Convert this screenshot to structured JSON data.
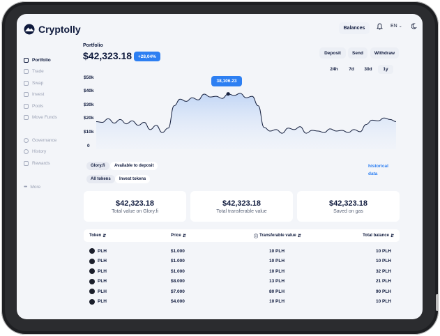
{
  "app": {
    "name": "Cryptolly"
  },
  "header": {
    "balances_label": "Balances",
    "language": "EN"
  },
  "sidebar": {
    "items": [
      {
        "label": "Portfolio",
        "icon": "portfolio-icon",
        "active": true
      },
      {
        "label": "Trade",
        "icon": "trade-icon"
      },
      {
        "label": "Swap",
        "icon": "swap-icon"
      },
      {
        "label": "Invest",
        "icon": "invest-icon"
      },
      {
        "label": "Pools",
        "icon": "pools-icon"
      },
      {
        "label": "Move Funds",
        "icon": "move-funds-icon"
      }
    ],
    "items2": [
      {
        "label": "Governance",
        "icon": "governance-icon"
      },
      {
        "label": "History",
        "icon": "history-icon"
      },
      {
        "label": "Rewards",
        "icon": "rewards-icon"
      }
    ],
    "more_label": "More"
  },
  "portfolio": {
    "title": "Portfolio",
    "value": "$42,323.18",
    "change": "+28,04%",
    "actions": [
      "Deposit",
      "Send",
      "Withdraw"
    ],
    "ranges": [
      "24h",
      "7d",
      "30d",
      "1y"
    ],
    "selected_range": "1y"
  },
  "chart_data": {
    "type": "area",
    "y_ticks": [
      "$50k",
      "$40k",
      "$30k",
      "$20k",
      "$10k",
      "0"
    ],
    "ylim": [
      0,
      50000
    ],
    "highlight": {
      "label": "38,106.23",
      "value": 38106.23,
      "index": 22
    },
    "values": [
      19000,
      18500,
      21000,
      18000,
      20500,
      17500,
      19500,
      16500,
      18500,
      13500,
      16500,
      11500,
      14500,
      30000,
      34500,
      33000,
      35500,
      34000,
      38000,
      36000,
      36500,
      35000,
      38106,
      37000,
      38500,
      35500,
      36500,
      30000,
      15000,
      12500,
      13500,
      11000,
      14500,
      13500,
      15500,
      11000,
      13000,
      12500,
      11500,
      14000,
      12500,
      13000,
      11500,
      13500,
      12000,
      17000,
      20000,
      19500,
      21500,
      20500,
      19000
    ],
    "grid": false
  },
  "filters": {
    "row1": [
      "Glory.fi",
      "Available to deposit"
    ],
    "row2": [
      "All tokens",
      "Invest tokens"
    ]
  },
  "historical_link": "historical data",
  "cards": [
    {
      "value": "$42,323.18",
      "label": "Total value on Glory.fi"
    },
    {
      "value": "$42,323.18",
      "label": "Total transferable value"
    },
    {
      "value": "$42,323.18",
      "label": "Saved on gas"
    }
  ],
  "table": {
    "headers": [
      "Token",
      "Price",
      "Transferable value",
      "Total balance"
    ],
    "rows": [
      [
        "PLH",
        "$1.000",
        "10 PLH",
        "10 PLH"
      ],
      [
        "PLH",
        "$1.000",
        "10 PLH",
        "10 PLH"
      ],
      [
        "PLH",
        "$1.000",
        "10 PLH",
        "32 PLH"
      ],
      [
        "PLH",
        "$8.000",
        "13 PLH",
        "21 PLH"
      ],
      [
        "PLH",
        "$7.000",
        "80 PLH",
        "90 PLH"
      ],
      [
        "PLH",
        "$4.000",
        "10 PLH",
        "10 PLH"
      ]
    ]
  },
  "colors": {
    "accent": "#2d7ff2",
    "text": "#0f1a3d",
    "background": "#f3f5f9"
  }
}
